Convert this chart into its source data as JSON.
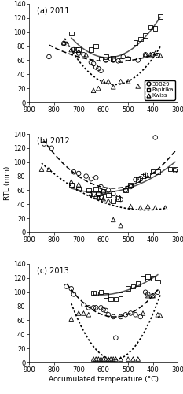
{
  "panels": [
    "(a) 2011",
    "(b) 2012",
    "(c) 2013"
  ],
  "xlim": [
    900,
    300
  ],
  "ylim": [
    0,
    140
  ],
  "yticks": [
    0,
    20,
    40,
    60,
    80,
    100,
    120,
    140
  ],
  "xticks": [
    900,
    800,
    700,
    600,
    500,
    400,
    300
  ],
  "data_2011": {
    "circle": [
      [
        820,
        65
      ],
      [
        760,
        84
      ],
      [
        750,
        83
      ],
      [
        720,
        75
      ],
      [
        700,
        70
      ],
      [
        680,
        68
      ],
      [
        650,
        57
      ],
      [
        640,
        55
      ],
      [
        630,
        50
      ],
      [
        620,
        48
      ],
      [
        610,
        45
      ],
      [
        590,
        60
      ],
      [
        570,
        62
      ],
      [
        560,
        60
      ],
      [
        540,
        59
      ],
      [
        520,
        65
      ],
      [
        500,
        62
      ],
      [
        460,
        60
      ],
      [
        430,
        68
      ],
      [
        400,
        68
      ],
      [
        380,
        67
      ]
    ],
    "square": [
      [
        730,
        98
      ],
      [
        710,
        75
      ],
      [
        700,
        75
      ],
      [
        680,
        78
      ],
      [
        650,
        75
      ],
      [
        630,
        80
      ],
      [
        610,
        62
      ],
      [
        590,
        65
      ],
      [
        560,
        63
      ],
      [
        530,
        60
      ],
      [
        500,
        62
      ],
      [
        470,
        85
      ],
      [
        450,
        90
      ],
      [
        430,
        95
      ],
      [
        410,
        107
      ],
      [
        390,
        105
      ],
      [
        370,
        122
      ]
    ],
    "triangle": [
      [
        760,
        85
      ],
      [
        730,
        75
      ],
      [
        700,
        72
      ],
      [
        670,
        68
      ],
      [
        640,
        17
      ],
      [
        620,
        20
      ],
      [
        600,
        30
      ],
      [
        580,
        30
      ],
      [
        560,
        22
      ],
      [
        530,
        30
      ],
      [
        500,
        30
      ],
      [
        460,
        23
      ],
      [
        430,
        68
      ],
      [
        410,
        68
      ],
      [
        390,
        70
      ],
      [
        370,
        67
      ]
    ]
  },
  "data_2012": {
    "circle": [
      [
        840,
        126
      ],
      [
        810,
        120
      ],
      [
        720,
        86
      ],
      [
        700,
        84
      ],
      [
        670,
        80
      ],
      [
        650,
        76
      ],
      [
        630,
        78
      ],
      [
        620,
        55
      ],
      [
        610,
        65
      ],
      [
        600,
        58
      ],
      [
        580,
        60
      ],
      [
        560,
        55
      ],
      [
        540,
        50
      ],
      [
        530,
        47
      ],
      [
        510,
        60
      ],
      [
        490,
        65
      ],
      [
        470,
        75
      ],
      [
        450,
        77
      ],
      [
        430,
        82
      ],
      [
        390,
        135
      ],
      [
        310,
        88
      ]
    ],
    "square": [
      [
        730,
        68
      ],
      [
        700,
        62
      ],
      [
        660,
        60
      ],
      [
        640,
        55
      ],
      [
        630,
        62
      ],
      [
        620,
        55
      ],
      [
        610,
        50
      ],
      [
        600,
        58
      ],
      [
        580,
        53
      ],
      [
        560,
        45
      ],
      [
        540,
        48
      ],
      [
        510,
        60
      ],
      [
        490,
        68
      ],
      [
        460,
        75
      ],
      [
        440,
        80
      ],
      [
        420,
        82
      ],
      [
        400,
        87
      ],
      [
        380,
        86
      ],
      [
        330,
        90
      ],
      [
        310,
        90
      ]
    ],
    "triangle": [
      [
        850,
        90
      ],
      [
        820,
        90
      ],
      [
        730,
        72
      ],
      [
        700,
        68
      ],
      [
        650,
        55
      ],
      [
        630,
        52
      ],
      [
        620,
        50
      ],
      [
        600,
        48
      ],
      [
        580,
        45
      ],
      [
        560,
        18
      ],
      [
        530,
        10
      ],
      [
        490,
        37
      ],
      [
        450,
        35
      ],
      [
        420,
        37
      ],
      [
        390,
        35
      ],
      [
        350,
        35
      ]
    ]
  },
  "data_2013": {
    "circle": [
      [
        750,
        108
      ],
      [
        730,
        105
      ],
      [
        720,
        97
      ],
      [
        680,
        82
      ],
      [
        660,
        78
      ],
      [
        640,
        78
      ],
      [
        630,
        78
      ],
      [
        610,
        78
      ],
      [
        600,
        75
      ],
      [
        590,
        74
      ],
      [
        580,
        68
      ],
      [
        560,
        65
      ],
      [
        550,
        35
      ],
      [
        530,
        65
      ],
      [
        510,
        68
      ],
      [
        490,
        70
      ],
      [
        470,
        68
      ],
      [
        450,
        65
      ],
      [
        430,
        100
      ],
      [
        420,
        97
      ],
      [
        400,
        95
      ],
      [
        380,
        100
      ]
    ],
    "square": [
      [
        640,
        99
      ],
      [
        630,
        98
      ],
      [
        610,
        100
      ],
      [
        590,
        95
      ],
      [
        570,
        90
      ],
      [
        550,
        90
      ],
      [
        530,
        97
      ],
      [
        500,
        105
      ],
      [
        480,
        108
      ],
      [
        460,
        112
      ],
      [
        440,
        120
      ],
      [
        420,
        122
      ],
      [
        400,
        120
      ],
      [
        380,
        115
      ]
    ],
    "triangle": [
      [
        730,
        62
      ],
      [
        700,
        70
      ],
      [
        680,
        70
      ],
      [
        660,
        68
      ],
      [
        640,
        5
      ],
      [
        630,
        5
      ],
      [
        620,
        5
      ],
      [
        610,
        5
      ],
      [
        600,
        5
      ],
      [
        590,
        5
      ],
      [
        580,
        5
      ],
      [
        570,
        5
      ],
      [
        560,
        5
      ],
      [
        550,
        5
      ],
      [
        530,
        5
      ],
      [
        500,
        5
      ],
      [
        480,
        5
      ],
      [
        460,
        5
      ],
      [
        440,
        70
      ],
      [
        420,
        95
      ],
      [
        400,
        95
      ],
      [
        380,
        68
      ],
      [
        370,
        67
      ]
    ]
  },
  "curve_x_ranges": {
    "2011": {
      "circle": [
        380,
        820
      ],
      "square": [
        370,
        730
      ],
      "triangle": [
        370,
        760
      ]
    },
    "2012": {
      "circle": [
        310,
        840
      ],
      "square": [
        310,
        730
      ],
      "triangle": [
        350,
        850
      ]
    },
    "2013": {
      "circle": [
        380,
        750
      ],
      "square": [
        380,
        640
      ],
      "triangle": [
        370,
        730
      ]
    }
  },
  "legend_labels": [
    "39B29",
    "Papirika",
    "Kwiss"
  ],
  "xlabel": "Accumulated temperature (°C)",
  "background_color": "white",
  "marker_size": 4,
  "line_width": 1.1,
  "circle_line": "--",
  "square_line": "-",
  "triangle_line": ":"
}
